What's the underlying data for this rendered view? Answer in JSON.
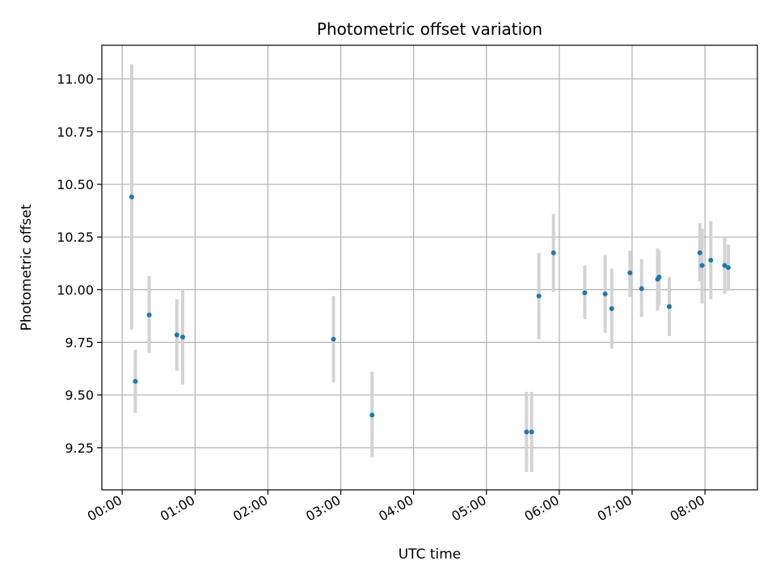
{
  "chart_data": {
    "type": "scatter",
    "title": "Photometric offset variation",
    "xlabel": "UTC time",
    "ylabel": "Photometric offset",
    "x_unit": "hours UTC",
    "xlim": [
      -0.28,
      8.72
    ],
    "ylim": [
      9.05,
      11.16
    ],
    "x_ticks": [
      {
        "value": 0,
        "label": "00:00"
      },
      {
        "value": 1,
        "label": "01:00"
      },
      {
        "value": 2,
        "label": "02:00"
      },
      {
        "value": 3,
        "label": "03:00"
      },
      {
        "value": 4,
        "label": "04:00"
      },
      {
        "value": 5,
        "label": "05:00"
      },
      {
        "value": 6,
        "label": "06:00"
      },
      {
        "value": 7,
        "label": "07:00"
      },
      {
        "value": 8,
        "label": "08:00"
      }
    ],
    "y_ticks": [
      {
        "value": 9.25,
        "label": "9.25"
      },
      {
        "value": 9.5,
        "label": "9.50"
      },
      {
        "value": 9.75,
        "label": "9.75"
      },
      {
        "value": 10.0,
        "label": "10.00"
      },
      {
        "value": 10.25,
        "label": "10.25"
      },
      {
        "value": 10.5,
        "label": "10.50"
      },
      {
        "value": 10.75,
        "label": "10.75"
      },
      {
        "value": 11.0,
        "label": "11.00"
      }
    ],
    "grid": true,
    "colors": {
      "point": "#1f77b4",
      "errorbar": "#d3d3d3",
      "grid": "#b0b0b0"
    },
    "points": [
      {
        "x": 0.13,
        "y": 10.44,
        "ylow": 9.81,
        "yhigh": 11.07
      },
      {
        "x": 0.18,
        "y": 9.565,
        "ylow": 9.415,
        "yhigh": 9.715
      },
      {
        "x": 0.37,
        "y": 9.88,
        "ylow": 9.7,
        "yhigh": 10.065
      },
      {
        "x": 0.75,
        "y": 9.785,
        "ylow": 9.615,
        "yhigh": 9.955
      },
      {
        "x": 0.83,
        "y": 9.775,
        "ylow": 9.55,
        "yhigh": 10.0
      },
      {
        "x": 2.9,
        "y": 9.765,
        "ylow": 9.56,
        "yhigh": 9.97
      },
      {
        "x": 3.43,
        "y": 9.405,
        "ylow": 9.205,
        "yhigh": 9.61
      },
      {
        "x": 5.55,
        "y": 9.325,
        "ylow": 9.135,
        "yhigh": 9.515
      },
      {
        "x": 5.62,
        "y": 9.325,
        "ylow": 9.135,
        "yhigh": 9.515
      },
      {
        "x": 5.72,
        "y": 9.97,
        "ylow": 9.765,
        "yhigh": 10.175
      },
      {
        "x": 5.92,
        "y": 10.175,
        "ylow": 9.99,
        "yhigh": 10.36
      },
      {
        "x": 6.35,
        "y": 9.985,
        "ylow": 9.86,
        "yhigh": 10.115
      },
      {
        "x": 6.63,
        "y": 9.98,
        "ylow": 9.795,
        "yhigh": 10.165
      },
      {
        "x": 6.72,
        "y": 9.91,
        "ylow": 9.72,
        "yhigh": 10.1
      },
      {
        "x": 6.97,
        "y": 10.08,
        "ylow": 9.965,
        "yhigh": 10.185
      },
      {
        "x": 7.13,
        "y": 10.005,
        "ylow": 9.87,
        "yhigh": 10.145
      },
      {
        "x": 7.35,
        "y": 10.05,
        "ylow": 9.9,
        "yhigh": 10.195
      },
      {
        "x": 7.37,
        "y": 10.06,
        "ylow": 9.925,
        "yhigh": 10.185
      },
      {
        "x": 7.51,
        "y": 9.92,
        "ylow": 9.78,
        "yhigh": 10.06
      },
      {
        "x": 7.93,
        "y": 10.175,
        "ylow": 10.04,
        "yhigh": 10.315
      },
      {
        "x": 7.96,
        "y": 10.115,
        "ylow": 9.935,
        "yhigh": 10.29
      },
      {
        "x": 8.08,
        "y": 10.14,
        "ylow": 9.955,
        "yhigh": 10.325
      },
      {
        "x": 8.27,
        "y": 10.115,
        "ylow": 9.98,
        "yhigh": 10.25
      },
      {
        "x": 8.32,
        "y": 10.105,
        "ylow": 9.995,
        "yhigh": 10.215
      }
    ]
  }
}
